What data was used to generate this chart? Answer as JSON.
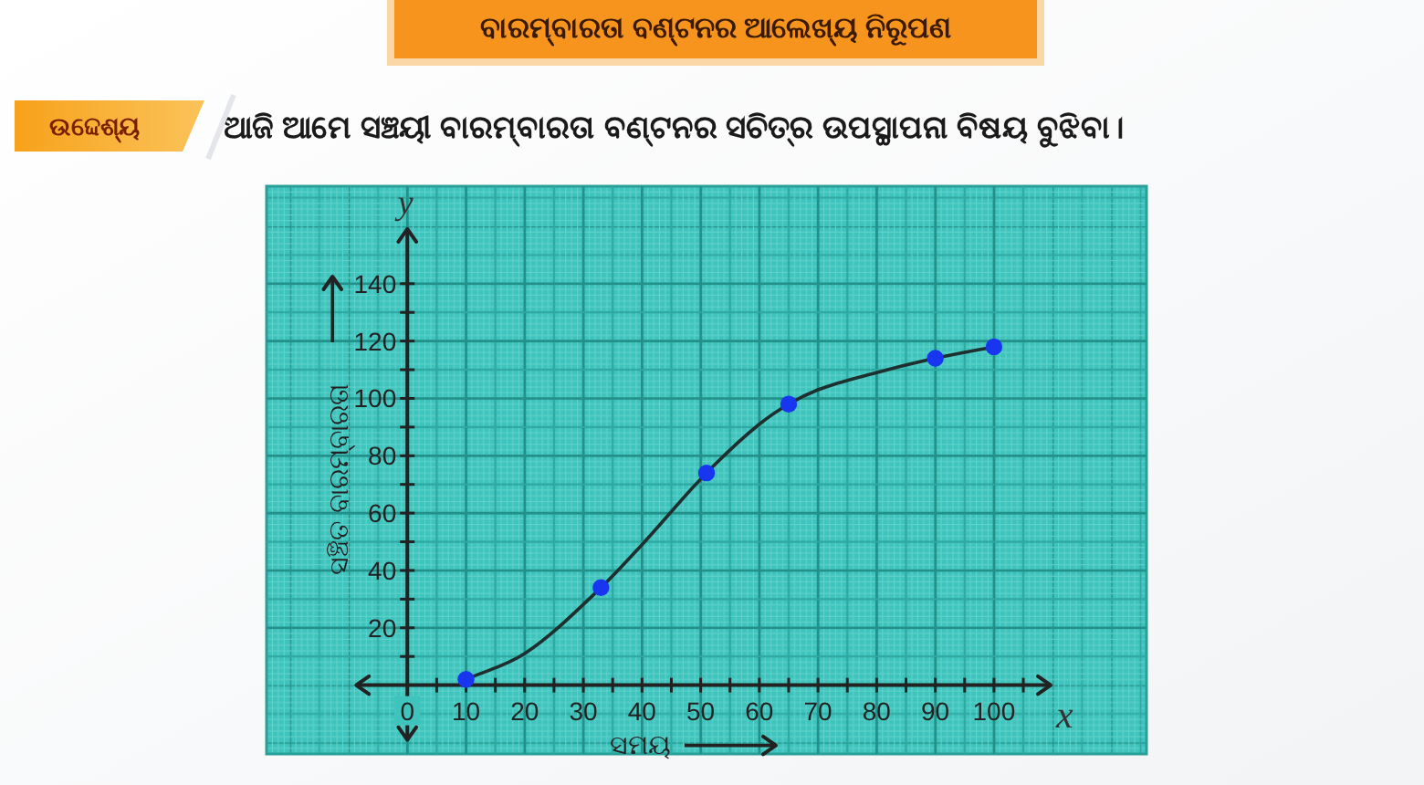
{
  "chart_data": {
    "type": "line",
    "title": "ବାରମ୍ବାରତା ବଣ୍ଟନର ଆଲେଖ୍ୟ ନିରୂପଣ",
    "subtitle": "ଆଜି ଆମେ ସଞ୍ଚୟୀ ବାରମ୍ବାରତା ବଣ୍ଟନର ସଚିତ୍ର ଉପସ୍ଥାପନା ବିଷୟ ବୁଝିବା।",
    "xlabel": "ସମୟ",
    "ylabel": "ସଞ୍ଚିତ ବାରମ୍ବାରତା",
    "annotations": [
      "ଉଦ୍ଦେଶ୍ୟ",
      "x",
      "y"
    ],
    "series": [
      {
        "color": "#1e2f2f",
        "x": [
          10,
          20,
          33,
          40,
          51,
          60,
          65,
          70,
          80,
          90,
          100
        ],
        "values": [
          2,
          11,
          34,
          49,
          74,
          91,
          98,
          103,
          109,
          114,
          118
        ]
      },
      {
        "type": "scatter",
        "color": "#1836f0",
        "x": [
          10,
          33,
          51,
          65,
          90,
          100
        ],
        "values": [
          2,
          34,
          74,
          98,
          114,
          118
        ]
      }
    ],
    "xlim": [
      -24,
      126
    ],
    "ylim": [
      -24,
      174
    ],
    "xticks": [
      {
        "value": 0,
        "label": "0"
      },
      {
        "value": 5,
        "label": null
      },
      10,
      {
        "value": 15,
        "label": null
      },
      20,
      {
        "value": 25,
        "label": null
      },
      30,
      {
        "value": 35,
        "label": null
      },
      40,
      {
        "value": 45,
        "label": null
      },
      50,
      {
        "value": 55,
        "label": null
      },
      60,
      {
        "value": 65,
        "label": null
      },
      70,
      {
        "value": 75,
        "label": null
      },
      80,
      {
        "value": 85,
        "label": null
      },
      90,
      {
        "value": 95,
        "label": null
      },
      100,
      {
        "value": 105,
        "label": null
      }
    ],
    "yticks": [
      {
        "value": 10,
        "label": null
      },
      20,
      {
        "value": 30,
        "label": null
      },
      40,
      {
        "value": 50,
        "label": null
      },
      60,
      {
        "value": 70,
        "label": null
      },
      80,
      {
        "value": 90,
        "label": null
      },
      100,
      {
        "value": 110,
        "label": null
      },
      120,
      {
        "value": 130,
        "label": null
      },
      140
    ],
    "grid": true,
    "line_style": "solid"
  }
}
